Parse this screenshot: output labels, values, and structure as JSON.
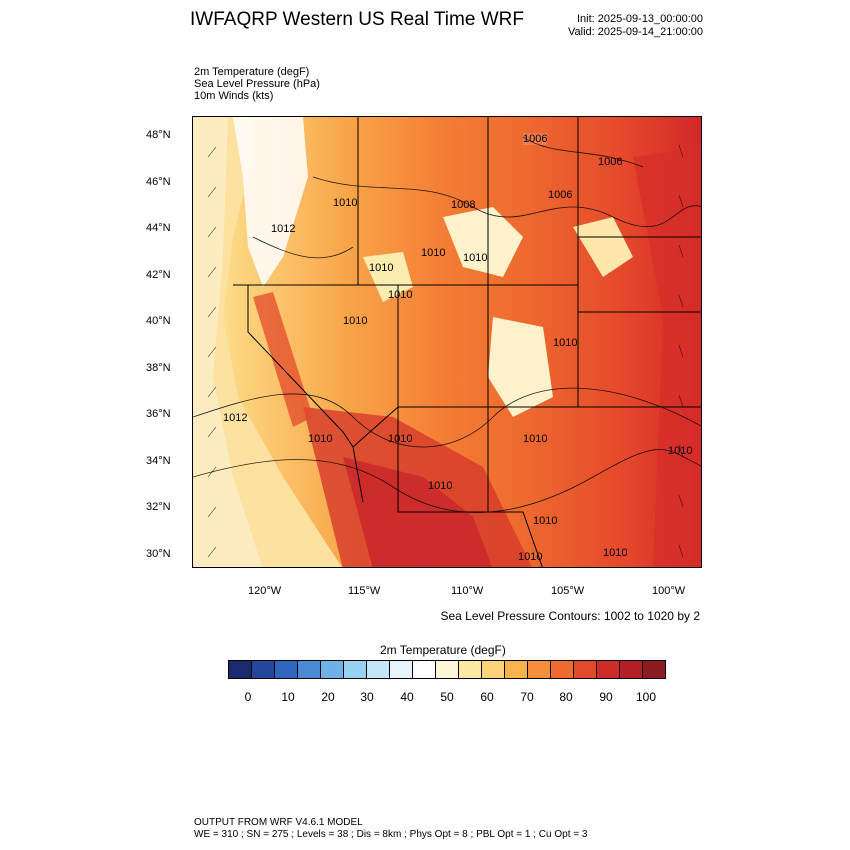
{
  "header": {
    "title": "IWFAQRP Western US Real Time WRF",
    "init": "Init: 2025-09-13_00:00:00",
    "valid": "Valid: 2025-09-14_21:00:00"
  },
  "fields": [
    "2m Temperature   (degF)",
    "Sea Level Pressure   (hPa)",
    "10m Winds   (kts)"
  ],
  "map": {
    "lat_labels": [
      "48°N",
      "46°N",
      "44°N",
      "42°N",
      "40°N",
      "38°N",
      "36°N",
      "34°N",
      "32°N",
      "30°N"
    ],
    "lon_labels": [
      "120°W",
      "115°W",
      "110°W",
      "105°W",
      "100°W"
    ],
    "pressure_labels": [
      "1006",
      "1006",
      "1008",
      "1006",
      "1010",
      "1012",
      "1010",
      "1010",
      "1010",
      "1010",
      "1010",
      "1010",
      "1012",
      "1010",
      "1010",
      "1010",
      "1010",
      "1010",
      "1010",
      "1010",
      "1010"
    ],
    "contour_info": "Sea Level Pressure Contours: 1002 to 1020 by 2"
  },
  "colorbar": {
    "title": "2m Temperature  (degF)",
    "labels": [
      "0",
      "10",
      "20",
      "30",
      "40",
      "50",
      "60",
      "70",
      "80",
      "90",
      "100"
    ],
    "colors": [
      "#1a2a6c",
      "#23479b",
      "#2f67c0",
      "#4a8bd4",
      "#6fb0e6",
      "#99d1f3",
      "#c3e6f8",
      "#e6f5fb",
      "#ffffff",
      "#fdf6d8",
      "#fde8a4",
      "#fcd27a",
      "#f8b24e",
      "#f58f3c",
      "#ef6c30",
      "#e34a2b",
      "#cf2b27",
      "#b21f24",
      "#8e1b1f"
    ]
  },
  "footer": {
    "line1": "OUTPUT FROM WRF V4.6.1 MODEL",
    "line2": "WE = 310 ; SN = 275 ; Levels = 38 ; Dis = 8km ; Phys Opt = 8 ; PBL Opt = 1 ; Cu Opt = 3"
  }
}
